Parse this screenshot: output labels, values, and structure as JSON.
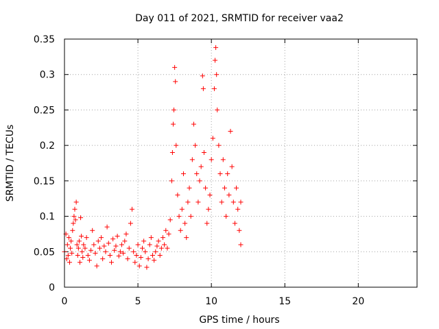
{
  "chart_data": {
    "type": "scatter",
    "title": "Day 011 of 2021, SRMTID for receiver vaa2",
    "xlabel": "GPS time / hours",
    "ylabel": "SRMTID / TECUs",
    "xlim": [
      0,
      24
    ],
    "ylim": [
      0,
      0.35
    ],
    "xticks": [
      0,
      5,
      10,
      15,
      20
    ],
    "yticks": [
      0,
      0.05,
      0.1,
      0.15,
      0.2,
      0.25,
      0.3,
      0.35
    ],
    "xtick_labels": [
      "0",
      "5",
      "10",
      "15",
      "20"
    ],
    "ytick_labels": [
      "0",
      "0.05",
      "0.1",
      "0.15",
      "0.2",
      "0.25",
      "0.3",
      "0.35"
    ],
    "grid": true,
    "marker": "+",
    "color": "#ff0000",
    "series": [
      {
        "name": "SRMTID",
        "points": [
          [
            0.0,
            0.05
          ],
          [
            0.1,
            0.075
          ],
          [
            0.15,
            0.04
          ],
          [
            0.2,
            0.06
          ],
          [
            0.25,
            0.045
          ],
          [
            0.3,
            0.07
          ],
          [
            0.35,
            0.035
          ],
          [
            0.4,
            0.055
          ],
          [
            0.45,
            0.065
          ],
          [
            0.5,
            0.048
          ],
          [
            0.55,
            0.08
          ],
          [
            0.6,
            0.09
          ],
          [
            0.65,
            0.1
          ],
          [
            0.7,
            0.11
          ],
          [
            0.75,
            0.095
          ],
          [
            0.8,
            0.12
          ],
          [
            0.85,
            0.06
          ],
          [
            0.9,
            0.045
          ],
          [
            0.95,
            0.055
          ],
          [
            1.0,
            0.065
          ],
          [
            1.05,
            0.035
          ],
          [
            1.1,
            0.098
          ],
          [
            1.15,
            0.072
          ],
          [
            1.2,
            0.05
          ],
          [
            1.25,
            0.042
          ],
          [
            1.3,
            0.06
          ],
          [
            1.4,
            0.055
          ],
          [
            1.5,
            0.07
          ],
          [
            1.6,
            0.045
          ],
          [
            1.7,
            0.038
          ],
          [
            1.8,
            0.052
          ],
          [
            1.9,
            0.08
          ],
          [
            2.0,
            0.06
          ],
          [
            2.1,
            0.048
          ],
          [
            2.2,
            0.03
          ],
          [
            2.3,
            0.065
          ],
          [
            2.4,
            0.055
          ],
          [
            2.5,
            0.07
          ],
          [
            2.6,
            0.04
          ],
          [
            2.7,
            0.058
          ],
          [
            2.8,
            0.05
          ],
          [
            2.9,
            0.085
          ],
          [
            3.0,
            0.062
          ],
          [
            3.1,
            0.045
          ],
          [
            3.2,
            0.035
          ],
          [
            3.3,
            0.068
          ],
          [
            3.4,
            0.052
          ],
          [
            3.5,
            0.058
          ],
          [
            3.6,
            0.072
          ],
          [
            3.7,
            0.044
          ],
          [
            3.8,
            0.05
          ],
          [
            3.9,
            0.06
          ],
          [
            4.0,
            0.048
          ],
          [
            4.1,
            0.065
          ],
          [
            4.2,
            0.075
          ],
          [
            4.3,
            0.04
          ],
          [
            4.4,
            0.055
          ],
          [
            4.5,
            0.09
          ],
          [
            4.6,
            0.11
          ],
          [
            4.7,
            0.05
          ],
          [
            4.8,
            0.035
          ],
          [
            4.9,
            0.045
          ],
          [
            5.0,
            0.06
          ],
          [
            5.1,
            0.03
          ],
          [
            5.2,
            0.042
          ],
          [
            5.3,
            0.055
          ],
          [
            5.4,
            0.065
          ],
          [
            5.5,
            0.05
          ],
          [
            5.6,
            0.028
          ],
          [
            5.7,
            0.04
          ],
          [
            5.8,
            0.06
          ],
          [
            5.9,
            0.07
          ],
          [
            6.0,
            0.045
          ],
          [
            6.1,
            0.038
          ],
          [
            6.2,
            0.05
          ],
          [
            6.3,
            0.058
          ],
          [
            6.4,
            0.065
          ],
          [
            6.5,
            0.045
          ],
          [
            6.6,
            0.055
          ],
          [
            6.7,
            0.07
          ],
          [
            6.8,
            0.06
          ],
          [
            6.9,
            0.08
          ],
          [
            7.0,
            0.055
          ],
          [
            7.1,
            0.075
          ],
          [
            7.2,
            0.095
          ],
          [
            7.3,
            0.15
          ],
          [
            7.35,
            0.19
          ],
          [
            7.4,
            0.23
          ],
          [
            7.45,
            0.25
          ],
          [
            7.5,
            0.31
          ],
          [
            7.55,
            0.29
          ],
          [
            7.6,
            0.2
          ],
          [
            7.7,
            0.13
          ],
          [
            7.8,
            0.1
          ],
          [
            7.9,
            0.08
          ],
          [
            8.0,
            0.11
          ],
          [
            8.1,
            0.16
          ],
          [
            8.2,
            0.09
          ],
          [
            8.3,
            0.07
          ],
          [
            8.4,
            0.12
          ],
          [
            8.5,
            0.14
          ],
          [
            8.6,
            0.1
          ],
          [
            8.7,
            0.18
          ],
          [
            8.8,
            0.23
          ],
          [
            8.9,
            0.2
          ],
          [
            9.0,
            0.16
          ],
          [
            9.1,
            0.12
          ],
          [
            9.2,
            0.15
          ],
          [
            9.3,
            0.17
          ],
          [
            9.4,
            0.298
          ],
          [
            9.45,
            0.28
          ],
          [
            9.5,
            0.19
          ],
          [
            9.6,
            0.14
          ],
          [
            9.7,
            0.09
          ],
          [
            9.8,
            0.11
          ],
          [
            9.9,
            0.13
          ],
          [
            10.0,
            0.18
          ],
          [
            10.1,
            0.21
          ],
          [
            10.2,
            0.28
          ],
          [
            10.25,
            0.32
          ],
          [
            10.3,
            0.338
          ],
          [
            10.35,
            0.3
          ],
          [
            10.4,
            0.25
          ],
          [
            10.5,
            0.2
          ],
          [
            10.6,
            0.16
          ],
          [
            10.7,
            0.12
          ],
          [
            10.8,
            0.18
          ],
          [
            10.9,
            0.14
          ],
          [
            11.0,
            0.1
          ],
          [
            11.1,
            0.16
          ],
          [
            11.2,
            0.13
          ],
          [
            11.3,
            0.22
          ],
          [
            11.4,
            0.17
          ],
          [
            11.5,
            0.12
          ],
          [
            11.6,
            0.09
          ],
          [
            11.7,
            0.14
          ],
          [
            11.8,
            0.11
          ],
          [
            11.9,
            0.08
          ],
          [
            12.0,
            0.06
          ],
          [
            12.0,
            0.12
          ]
        ]
      }
    ]
  }
}
